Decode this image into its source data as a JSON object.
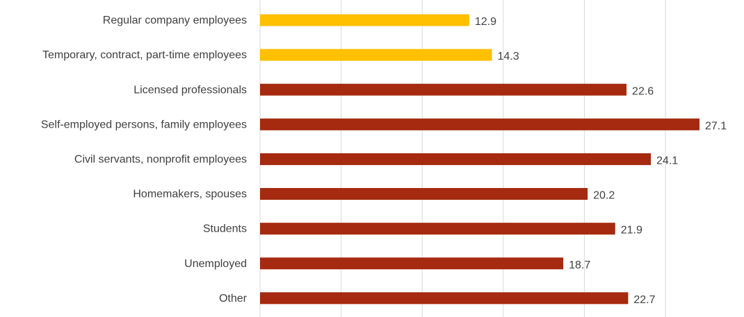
{
  "chart_data": {
    "type": "bar",
    "orientation": "horizontal",
    "categories": [
      "Regular company employees",
      "Temporary, contract, part-time employees",
      "Licensed professionals",
      "Self-employed persons, family employees",
      "Civil servants, nonprofit employees",
      "Homemakers, spouses",
      "Students",
      "Unemployed",
      "Other"
    ],
    "values": [
      12.9,
      14.3,
      22.6,
      27.1,
      24.1,
      20.2,
      21.9,
      18.7,
      22.7
    ],
    "bar_colors": [
      "#FFC000",
      "#FFC000",
      "#A52A0F",
      "#A52A0F",
      "#A52A0F",
      "#A52A0F",
      "#A52A0F",
      "#A52A0F",
      "#A52A0F"
    ],
    "xlim": [
      0,
      30
    ],
    "x_gridlines": [
      0,
      5,
      10,
      15,
      20,
      25,
      30
    ],
    "grid": true,
    "data_labels": true,
    "title": "",
    "xlabel": "",
    "ylabel": ""
  }
}
